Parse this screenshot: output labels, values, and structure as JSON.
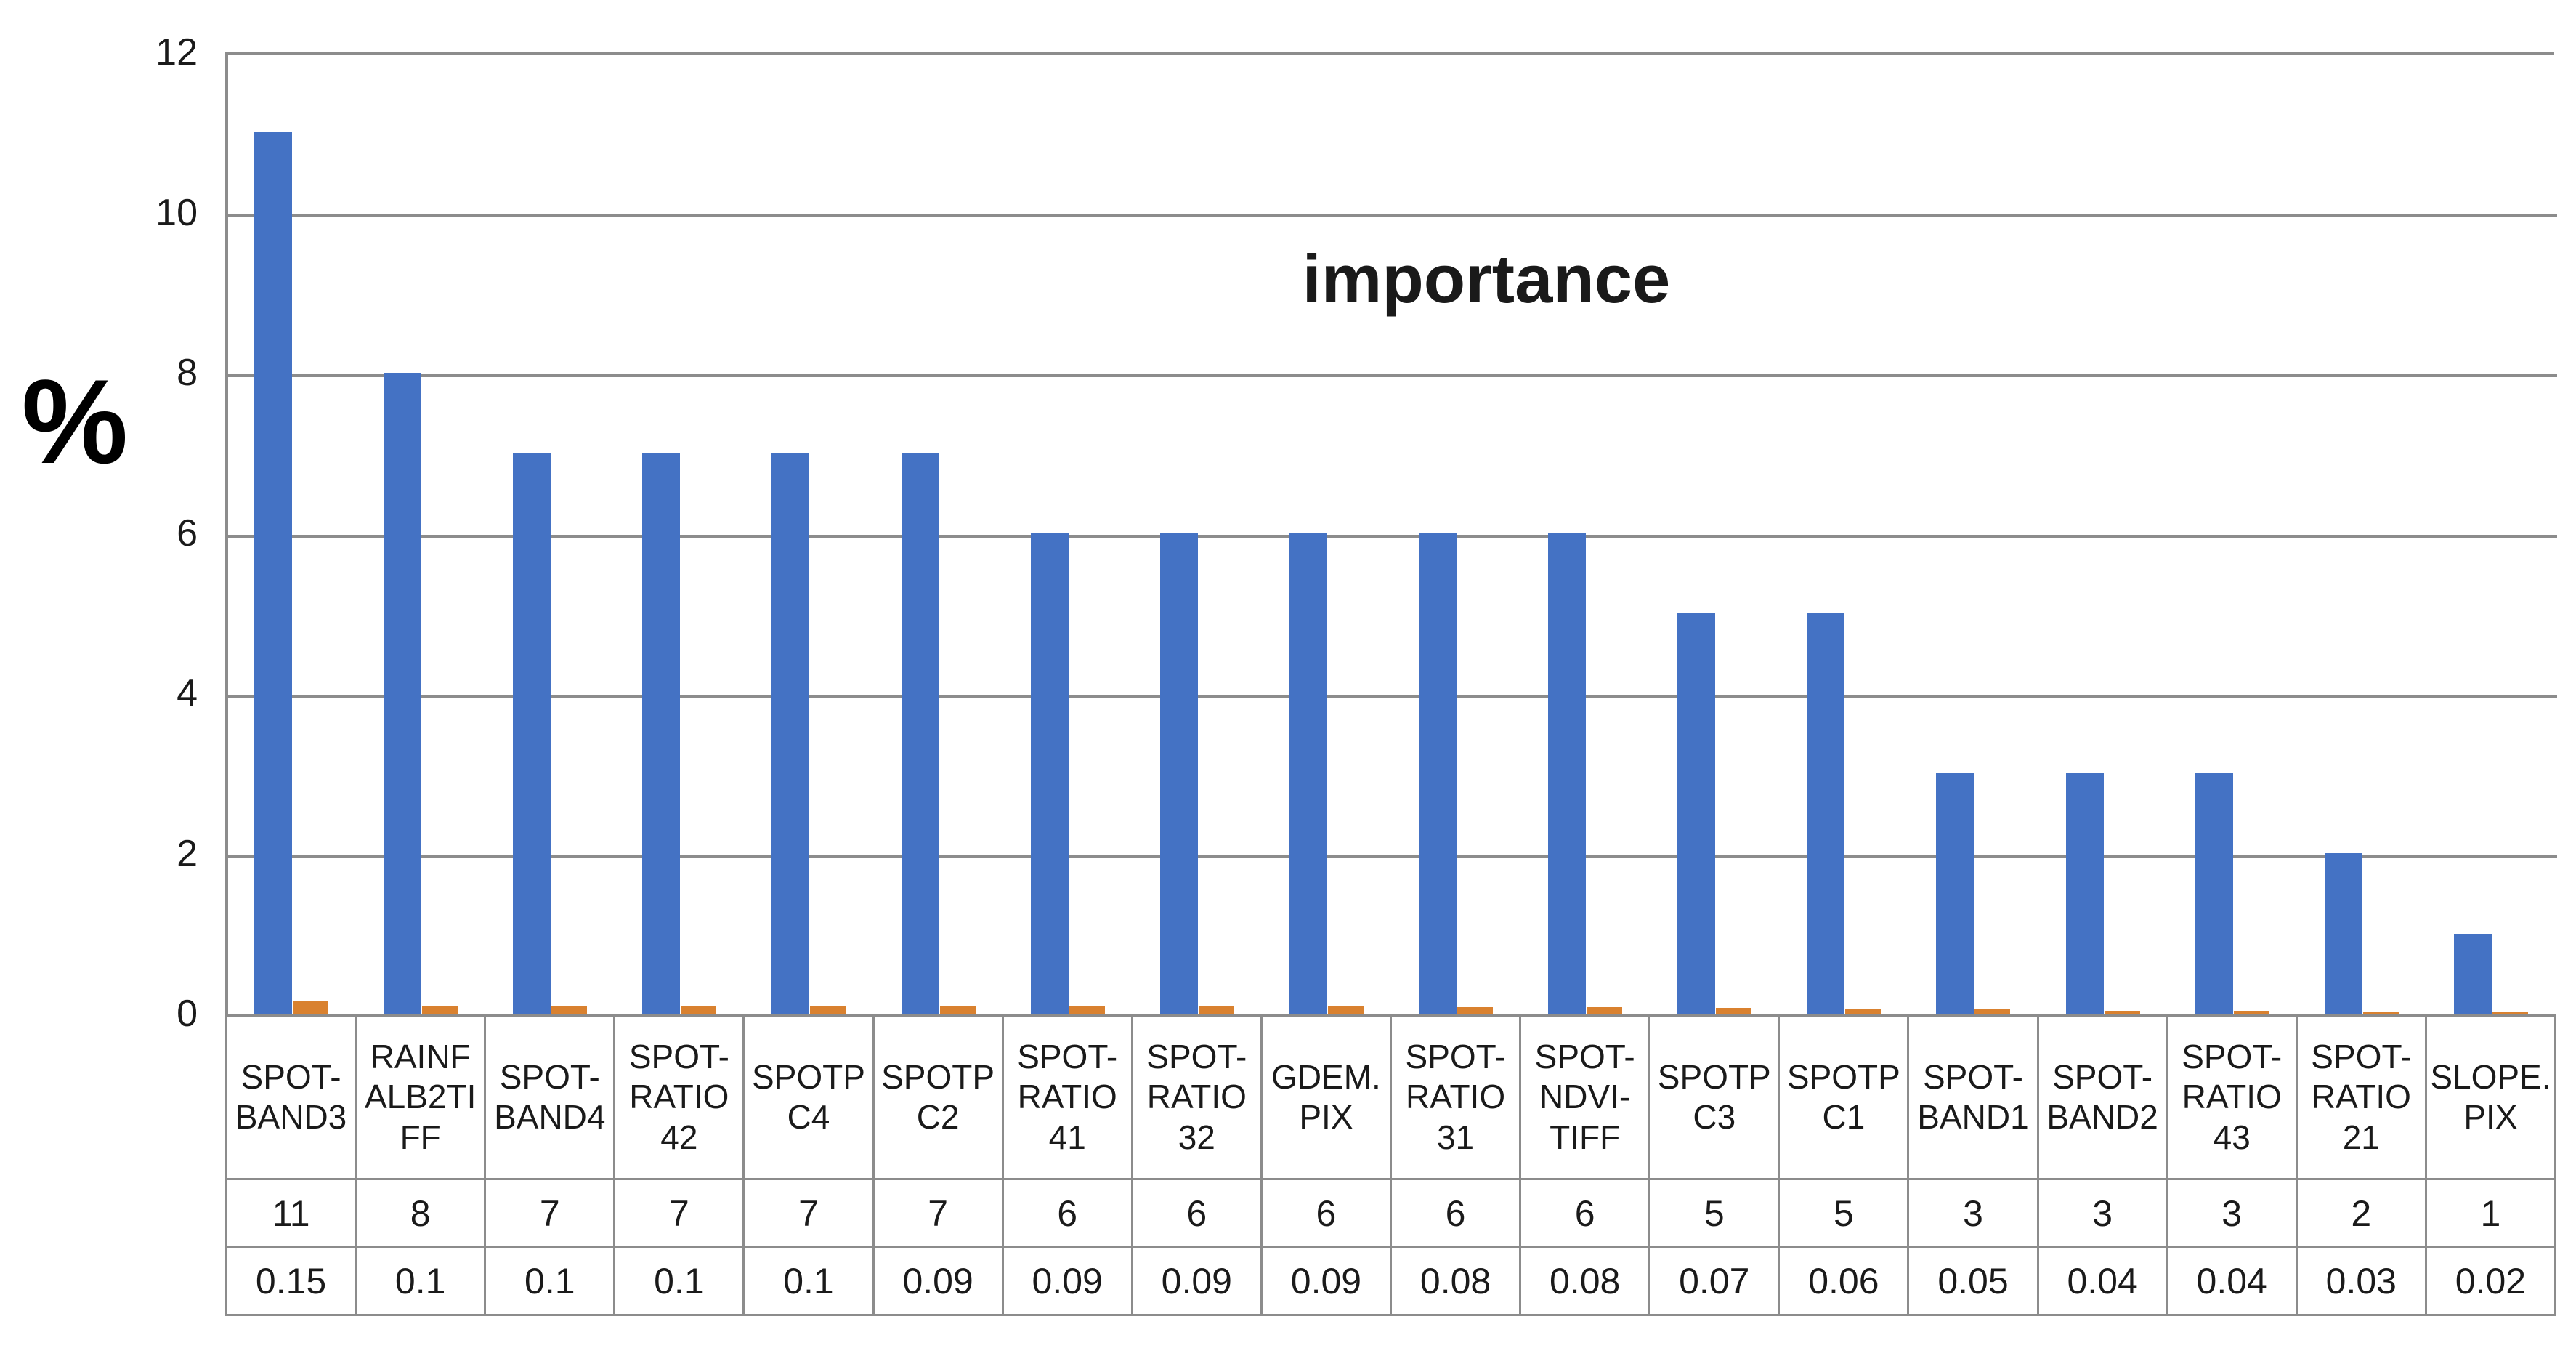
{
  "chart": {
    "title": "importance",
    "y_axis_label": "%",
    "y_ticks": [
      "12",
      "10",
      "8",
      "6",
      "4",
      "2",
      "0"
    ],
    "colors": {
      "bar_primary_blue": "#4472C4",
      "bar_secondary_orange": "#D9812F",
      "gridline_gray": "#8C8C8C",
      "text": "#1A1A1A"
    }
  },
  "chart_data": {
    "type": "bar",
    "title": "importance",
    "xlabel": "",
    "ylabel": "%",
    "ylim": [
      0,
      12
    ],
    "y_tick_step": 2,
    "grid": "horizontal gridlines at every 2 units",
    "legend_position": "none",
    "categories": [
      "SPOT-BAND3",
      "RAINFALB2TIFF",
      "SPOT-BAND4",
      "SPOT-RATIO 42",
      "SPOTP C4",
      "SPOTP C2",
      "SPOT-RATIO 41",
      "SPOT-RATIO 32",
      "GDEM.PIX",
      "SPOT-RATIO 31",
      "SPOT-NDVI-TIFF",
      "SPOTP C3",
      "SPOTP C1",
      "SPOT-BAND1",
      "SPOT-BAND2",
      "SPOT-RATIO 43",
      "SPOT-RATIO 21",
      "SLOPE.PIX"
    ],
    "series": [
      {
        "name": "series-blue",
        "values": [
          11,
          8,
          7,
          7,
          7,
          7,
          6,
          6,
          6,
          6,
          6,
          5,
          5,
          3,
          3,
          3,
          2,
          1
        ]
      },
      {
        "name": "series-orange",
        "values": [
          0.15,
          0.1,
          0.1,
          0.1,
          0.1,
          0.09,
          0.09,
          0.09,
          0.09,
          0.08,
          0.08,
          0.07,
          0.06,
          0.05,
          0.04,
          0.04,
          0.03,
          0.02
        ]
      }
    ]
  },
  "table": {
    "category_labels": [
      "SPOT-\nBAND3",
      "RAINF\nALB2TI\nFF",
      "SPOT-\nBAND4",
      "SPOT-\nRATIO\n42",
      "SPOTP\nC4",
      "SPOTP\nC2",
      "SPOT-\nRATIO\n41",
      "SPOT-\nRATIO\n32",
      "GDEM.\nPIX",
      "SPOT-\nRATIO\n31",
      "SPOT-\nNDVI-\nTIFF",
      "SPOTP\nC3",
      "SPOTP\nC1",
      "SPOT-\nBAND1",
      "SPOT-\nBAND2",
      "SPOT-\nRATIO\n43",
      "SPOT-\nRATIO\n21",
      "SLOPE.\nPIX"
    ],
    "row_values_1": [
      "11",
      "8",
      "7",
      "7",
      "7",
      "7",
      "6",
      "6",
      "6",
      "6",
      "6",
      "5",
      "5",
      "3",
      "3",
      "3",
      "2",
      "1"
    ],
    "row_values_2": [
      "0.15",
      "0.1",
      "0.1",
      "0.1",
      "0.1",
      "0.09",
      "0.09",
      "0.09",
      "0.09",
      "0.08",
      "0.08",
      "0.07",
      "0.06",
      "0.05",
      "0.04",
      "0.04",
      "0.03",
      "0.02"
    ]
  }
}
